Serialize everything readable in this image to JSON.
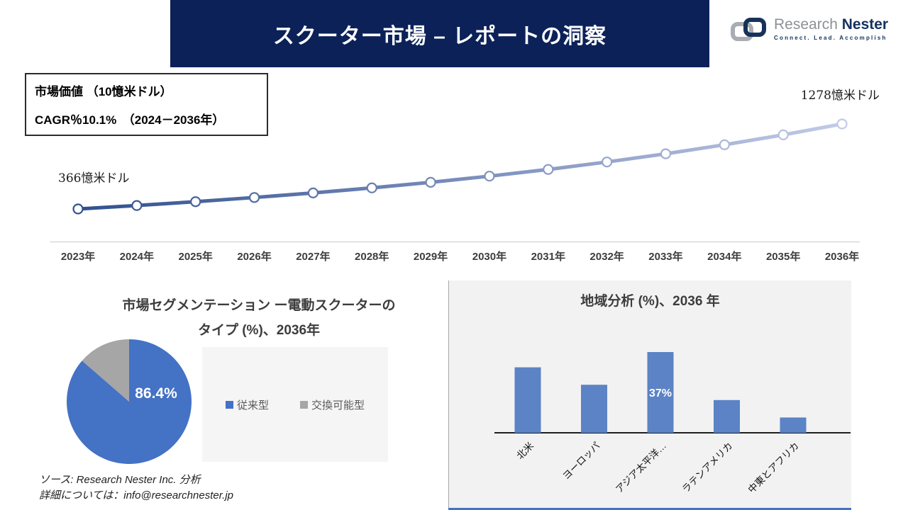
{
  "header": {
    "title": "スクーター市場 – レポートの洞察"
  },
  "logo": {
    "name_gray": "Research",
    "name_navy": "Nester",
    "tagline": "Connect. Lead. Accomplish"
  },
  "info_box": {
    "line1": "市場価値 （10憶米ドル）",
    "line2": "CAGR％10.1%　（2024－2036年）"
  },
  "colors": {
    "header_bg": "#0b2158",
    "accent_line": "#4472c4"
  },
  "chart_data": [
    {
      "type": "line",
      "title": "市場価値 （10憶米ドル）、2023－2036年",
      "x": [
        "2023年",
        "2024年",
        "2025年",
        "2026年",
        "2027年",
        "2028年",
        "2029年",
        "2030年",
        "2031年",
        "2032年",
        "2033年",
        "2034年",
        "2035年",
        "2036年"
      ],
      "values": [
        366,
        403,
        444,
        489,
        538,
        592,
        652,
        718,
        790,
        870,
        958,
        1055,
        1161,
        1278
      ],
      "start_label": "366憶米ドル",
      "end_label": "1278憶米ドル",
      "cagr": "10.1%",
      "ylim": [
        300,
        1350
      ],
      "grid": false,
      "line_gradient": [
        "#30508e",
        "#c2cbe7"
      ],
      "marker": "open-circle"
    },
    {
      "type": "pie",
      "title_line1": "市場セグメンテーション ー電動スクーターの",
      "title_line2": "タイプ (%)、2036年",
      "labels": [
        "従来型",
        "交換可能型"
      ],
      "values": [
        86.4,
        13.6
      ],
      "colors": [
        "#4472c4",
        "#a6a6a6"
      ],
      "data_label": "86.4%",
      "legend_position": "right"
    },
    {
      "type": "bar",
      "title": "地域分析 (%)、2036 年",
      "categories": [
        "北米",
        "ヨーロッパ",
        "アジア太平洋…",
        "ラテンアメリカ",
        "中東とアフリカ"
      ],
      "values": [
        30,
        22,
        37,
        15,
        7
      ],
      "data_labels": [
        "",
        "",
        "37%",
        "",
        ""
      ],
      "bar_color": "#5b83c5",
      "grid": false
    }
  ],
  "footer": {
    "source": "ソース: Research Nester Inc. 分析",
    "contact": "詳細については：info@researchnester.jp"
  }
}
